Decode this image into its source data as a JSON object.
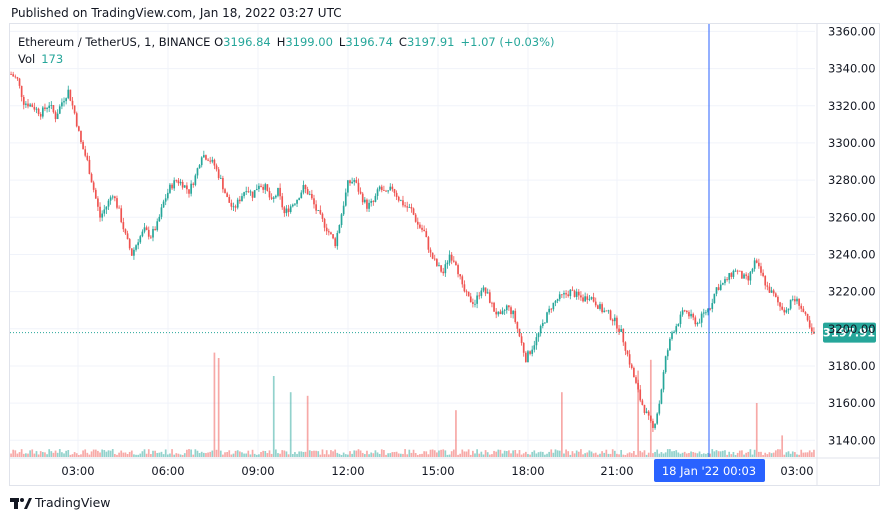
{
  "header": {
    "published_text": "Published on TradingView.com, Jan 18, 2022 03:27 UTC"
  },
  "legend": {
    "symbol": "Ethereum / TetherUS, 1, BINANCE",
    "open_label": "O",
    "open": "3196.84",
    "high_label": "H",
    "high": "3199.00",
    "low_label": "L",
    "low": "3196.74",
    "close_label": "C",
    "close": "3197.91",
    "change": "+1.07 (+0.03%)",
    "volume_label": "Vol",
    "volume": "173"
  },
  "footer": {
    "brand": "TradingView",
    "logo_icon": "tradingview-logo-icon"
  },
  "colors": {
    "up": "#26a69a",
    "down": "#ef5350",
    "crosshair": "#2962ff",
    "price_line": "#26a69a",
    "grid": "#f0f3fa"
  },
  "chart_data": {
    "type": "candlestick",
    "title": "",
    "x_axis_labels": [
      "03:00",
      "06:00",
      "09:00",
      "12:00",
      "15:00",
      "18:00",
      "21:00",
      "03:00"
    ],
    "crosshair_label": "18 Jan '22   00:03",
    "y_axis_labels": [
      "3360.00",
      "3340.00",
      "3320.00",
      "3300.00",
      "3280.00",
      "3260.00",
      "3240.00",
      "3220.00",
      "3200.00",
      "3180.00",
      "3160.00",
      "3140.00"
    ],
    "ylim": [
      3131,
      3364
    ],
    "last_price": "3197.91",
    "last_price_value": 3197.91,
    "grid": true,
    "price_path": [
      [
        0,
        3337
      ],
      [
        3,
        3334
      ],
      [
        6,
        3322
      ],
      [
        10,
        3320
      ],
      [
        14,
        3316
      ],
      [
        18,
        3321
      ],
      [
        21,
        3314
      ],
      [
        24,
        3322
      ],
      [
        27,
        3328
      ],
      [
        30,
        3316
      ],
      [
        33,
        3300
      ],
      [
        36,
        3290
      ],
      [
        39,
        3275
      ],
      [
        42,
        3260
      ],
      [
        45,
        3266
      ],
      [
        48,
        3273
      ],
      [
        51,
        3263
      ],
      [
        54,
        3250
      ],
      [
        57,
        3240
      ],
      [
        60,
        3248
      ],
      [
        63,
        3253
      ],
      [
        66,
        3250
      ],
      [
        69,
        3256
      ],
      [
        72,
        3268
      ],
      [
        75,
        3276
      ],
      [
        78,
        3280
      ],
      [
        81,
        3278
      ],
      [
        84,
        3274
      ],
      [
        87,
        3282
      ],
      [
        90,
        3294
      ],
      [
        93,
        3292
      ],
      [
        96,
        3288
      ],
      [
        99,
        3280
      ],
      [
        102,
        3270
      ],
      [
        105,
        3264
      ],
      [
        108,
        3270
      ],
      [
        111,
        3276
      ],
      [
        114,
        3272
      ],
      [
        117,
        3278
      ],
      [
        120,
        3276
      ],
      [
        123,
        3268
      ],
      [
        126,
        3274
      ],
      [
        129,
        3262
      ],
      [
        132,
        3266
      ],
      [
        135,
        3270
      ],
      [
        138,
        3276
      ],
      [
        141,
        3272
      ],
      [
        144,
        3264
      ],
      [
        147,
        3258
      ],
      [
        150,
        3252
      ],
      [
        153,
        3246
      ],
      [
        156,
        3262
      ],
      [
        159,
        3278
      ],
      [
        162,
        3280
      ],
      [
        165,
        3272
      ],
      [
        168,
        3266
      ],
      [
        171,
        3268
      ],
      [
        174,
        3276
      ],
      [
        177,
        3272
      ],
      [
        180,
        3276
      ],
      [
        183,
        3270
      ],
      [
        186,
        3266
      ],
      [
        189,
        3264
      ],
      [
        192,
        3256
      ],
      [
        195,
        3252
      ],
      [
        198,
        3240
      ],
      [
        201,
        3234
      ],
      [
        204,
        3230
      ],
      [
        207,
        3240
      ],
      [
        210,
        3236
      ],
      [
        213,
        3222
      ],
      [
        216,
        3216
      ],
      [
        219,
        3214
      ],
      [
        222,
        3222
      ],
      [
        225,
        3218
      ],
      [
        228,
        3210
      ],
      [
        231,
        3206
      ],
      [
        234,
        3212
      ],
      [
        237,
        3208
      ],
      [
        240,
        3196
      ],
      [
        243,
        3184
      ],
      [
        246,
        3190
      ],
      [
        249,
        3197
      ],
      [
        252,
        3205
      ],
      [
        255,
        3212
      ],
      [
        258,
        3216
      ],
      [
        261,
        3218
      ],
      [
        264,
        3220
      ],
      [
        267,
        3218
      ],
      [
        270,
        3216
      ],
      [
        273,
        3218
      ],
      [
        276,
        3214
      ],
      [
        279,
        3210
      ],
      [
        282,
        3208
      ],
      [
        285,
        3204
      ],
      [
        288,
        3198
      ],
      [
        291,
        3186
      ],
      [
        294,
        3174
      ],
      [
        297,
        3162
      ],
      [
        300,
        3154
      ],
      [
        303,
        3146
      ],
      [
        306,
        3160
      ],
      [
        309,
        3184
      ],
      [
        312,
        3198
      ],
      [
        315,
        3204
      ],
      [
        318,
        3210
      ],
      [
        321,
        3206
      ],
      [
        324,
        3203
      ],
      [
        327,
        3208
      ],
      [
        330,
        3212
      ],
      [
        333,
        3222
      ],
      [
        336,
        3224
      ],
      [
        339,
        3228
      ],
      [
        342,
        3232
      ],
      [
        345,
        3228
      ],
      [
        348,
        3226
      ],
      [
        351,
        3236
      ],
      [
        354,
        3230
      ],
      [
        357,
        3222
      ],
      [
        360,
        3218
      ],
      [
        363,
        3212
      ],
      [
        366,
        3210
      ],
      [
        369,
        3216
      ],
      [
        372,
        3214
      ],
      [
        375,
        3206
      ],
      [
        378,
        3197
      ]
    ],
    "volume_spikes": [
      [
        96,
        58
      ],
      [
        98,
        55
      ],
      [
        124,
        45
      ],
      [
        132,
        36
      ],
      [
        140,
        34
      ],
      [
        210,
        26
      ],
      [
        260,
        36
      ],
      [
        296,
        48
      ],
      [
        302,
        54
      ],
      [
        352,
        30
      ],
      [
        364,
        12
      ]
    ]
  }
}
